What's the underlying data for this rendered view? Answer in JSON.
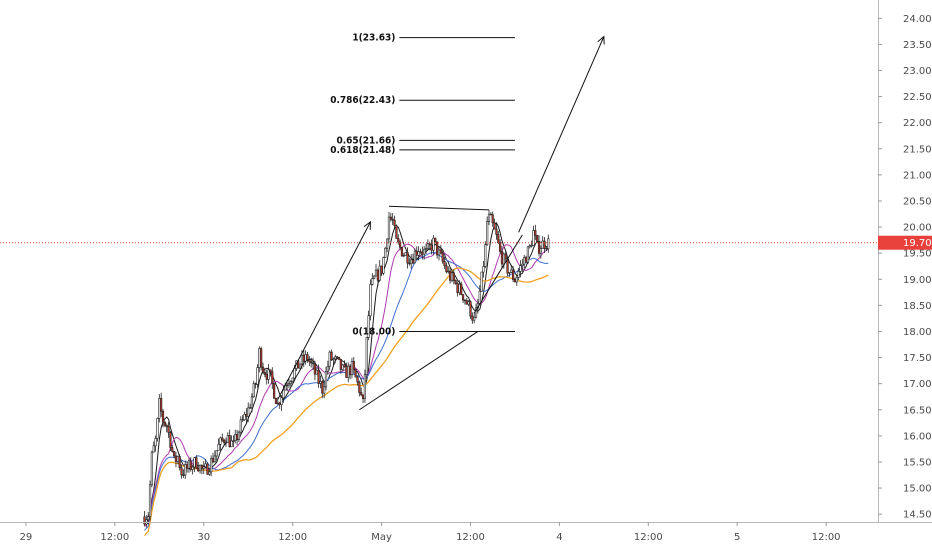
{
  "chart_data": {
    "type": "candlestick",
    "title": "",
    "xlabel": "",
    "ylabel": "",
    "x_axis": {
      "ticks": [
        {
          "label": "29",
          "t": 0
        },
        {
          "label": "12:00",
          "t": 12
        },
        {
          "label": "30",
          "t": 24
        },
        {
          "label": "12:00",
          "t": 36
        },
        {
          "label": "May",
          "t": 48
        },
        {
          "label": "12:00",
          "t": 60
        },
        {
          "label": "4",
          "t": 72
        },
        {
          "label": "12:00",
          "t": 84
        },
        {
          "label": "5",
          "t": 96
        },
        {
          "label": "12:00",
          "t": 108
        }
      ],
      "range": [
        -3.5,
        115
      ]
    },
    "y_axis": {
      "ticks": [
        "14.50",
        "15.00",
        "15.50",
        "16.00",
        "16.50",
        "17.00",
        "17.50",
        "18.00",
        "18.50",
        "19.00",
        "19.50",
        "20.00",
        "20.50",
        "21.00",
        "21.50",
        "22.00",
        "22.50",
        "23.00",
        "23.50",
        "24.00"
      ],
      "range": [
        14.35,
        24.35
      ]
    },
    "current_price": {
      "label": "19.70",
      "value": 19.7,
      "color": "#e8413b"
    },
    "fib_levels": [
      {
        "label": "1(23.63)",
        "value": 23.63
      },
      {
        "label": "0.786(22.43)",
        "value": 22.43
      },
      {
        "label": "0.65(21.66)",
        "value": 21.66
      },
      {
        "label": "0.618(21.48)",
        "value": 21.48
      },
      {
        "label": "0(18.00)",
        "value": 18.0
      }
    ],
    "fib_range_t": [
      45,
      66
    ],
    "trend_lines": [
      {
        "from": {
          "t": 45,
          "p": 16.5
        },
        "to": {
          "t": 61,
          "p": 18.0
        }
      },
      {
        "from": {
          "t": 49,
          "p": 20.4
        },
        "to": {
          "t": 62.5,
          "p": 20.33
        }
      },
      {
        "from": {
          "t": 60.5,
          "p": 18.35
        },
        "to": {
          "t": 67,
          "p": 19.85
        }
      }
    ],
    "arrows": [
      {
        "from": {
          "t": 34,
          "p": 16.7
        },
        "to": {
          "t": 46.5,
          "p": 20.1
        }
      },
      {
        "from": {
          "t": 66.5,
          "p": 19.9
        },
        "to": {
          "t": 78,
          "p": 23.65
        }
      }
    ],
    "series_colors": {
      "ma_fast": "#1b1b1b",
      "ma_mid": "#b03ab0",
      "ma_slow": "#3d6fd1",
      "ma_long": "#f0a020",
      "candle_up": "#ffffff",
      "candle_down": "#c0392b",
      "wick": "#222222"
    },
    "price_path": [
      [
        16.0,
        14.45
      ],
      [
        16.5,
        14.5
      ],
      [
        17,
        15.6
      ],
      [
        17.5,
        15.9
      ],
      [
        18,
        16.6
      ],
      [
        18.5,
        16.3
      ],
      [
        19,
        16.2
      ],
      [
        19.5,
        15.9
      ],
      [
        20,
        15.5
      ],
      [
        20.5,
        15.6
      ],
      [
        21,
        15.3
      ],
      [
        22,
        15.4
      ],
      [
        23,
        15.5
      ],
      [
        24,
        15.3
      ],
      [
        25,
        15.5
      ],
      [
        26,
        15.8
      ],
      [
        27,
        16.0
      ],
      [
        28,
        15.8
      ],
      [
        29,
        16.2
      ],
      [
        30,
        16.5
      ],
      [
        31,
        17.0
      ],
      [
        31.5,
        17.6
      ],
      [
        32,
        17.3
      ],
      [
        33,
        17.1
      ],
      [
        34,
        16.6
      ],
      [
        35,
        17.0
      ],
      [
        36,
        17.2
      ],
      [
        37,
        17.4
      ],
      [
        38,
        17.5
      ],
      [
        39,
        17.2
      ],
      [
        40,
        16.9
      ],
      [
        41,
        17.5
      ],
      [
        42,
        17.4
      ],
      [
        43,
        17.2
      ],
      [
        44,
        17.3
      ],
      [
        45,
        16.9
      ],
      [
        45.5,
        16.6
      ],
      [
        46,
        17.8
      ],
      [
        46.5,
        18.8
      ],
      [
        47,
        19.0
      ],
      [
        48,
        19.2
      ],
      [
        48.5,
        19.6
      ],
      [
        49,
        20.2
      ],
      [
        49.5,
        20.1
      ],
      [
        50,
        19.7
      ],
      [
        51,
        19.5
      ],
      [
        52,
        19.4
      ],
      [
        53,
        19.6
      ],
      [
        54,
        19.5
      ],
      [
        55,
        19.7
      ],
      [
        56,
        19.4
      ],
      [
        57,
        19.1
      ],
      [
        58,
        18.9
      ],
      [
        59,
        18.7
      ],
      [
        60,
        18.4
      ],
      [
        60.5,
        18.2
      ],
      [
        61,
        18.5
      ],
      [
        61.5,
        19.0
      ],
      [
        62,
        19.6
      ],
      [
        62.3,
        20.2
      ],
      [
        62.8,
        20.1
      ],
      [
        63.5,
        19.8
      ],
      [
        64,
        19.5
      ],
      [
        65,
        19.2
      ],
      [
        66,
        19.0
      ],
      [
        67,
        19.3
      ],
      [
        68,
        19.6
      ],
      [
        68.5,
        19.9
      ],
      [
        69,
        19.6
      ],
      [
        70,
        19.7
      ],
      [
        70.5,
        19.7
      ]
    ]
  }
}
